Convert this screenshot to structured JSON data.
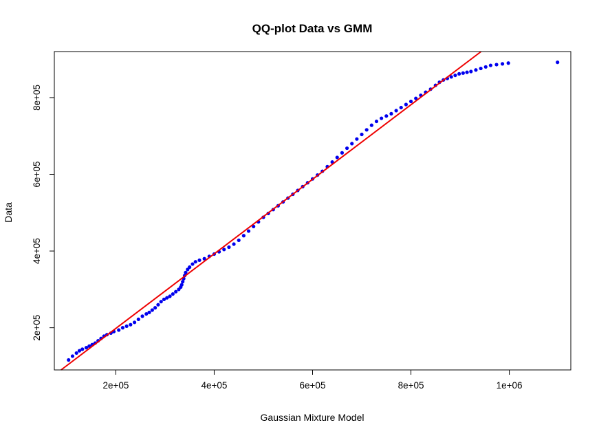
{
  "colors": {
    "points": "#0000ee",
    "line": "#ee0000",
    "frame": "#000000",
    "background": "#ffffff"
  },
  "chart_data": {
    "type": "scatter",
    "title": "QQ-plot Data vs GMM",
    "xlabel": "Gaussian Mixture Model",
    "ylabel": "Data",
    "xlim": [
      75000,
      1125000
    ],
    "ylim": [
      90000,
      920000
    ],
    "xticks": [
      200000,
      400000,
      600000,
      800000,
      1000000
    ],
    "xtick_labels": [
      "2e+05",
      "4e+05",
      "6e+05",
      "8e+05",
      "1e+06"
    ],
    "yticks": [
      200000,
      400000,
      600000,
      800000
    ],
    "ytick_labels": [
      "2e+05",
      "4e+05",
      "6e+05",
      "8e+05"
    ],
    "grid": false,
    "reference_line": {
      "slope": 0.972,
      "intercept": 3800,
      "color": "red"
    },
    "series": [
      {
        "points": [
          [
            104000,
            116000
          ],
          [
            112000,
            126000
          ],
          [
            120000,
            134000
          ],
          [
            126000,
            140000
          ],
          [
            132000,
            144000
          ],
          [
            140000,
            148000
          ],
          [
            146000,
            152000
          ],
          [
            152000,
            156000
          ],
          [
            158000,
            160000
          ],
          [
            164000,
            166000
          ],
          [
            170000,
            172000
          ],
          [
            176000,
            178000
          ],
          [
            182000,
            182000
          ],
          [
            190000,
            186000
          ],
          [
            196000,
            190000
          ],
          [
            206000,
            194000
          ],
          [
            214000,
            200000
          ],
          [
            222000,
            204000
          ],
          [
            230000,
            208000
          ],
          [
            238000,
            214000
          ],
          [
            246000,
            222000
          ],
          [
            254000,
            230000
          ],
          [
            262000,
            236000
          ],
          [
            268000,
            240000
          ],
          [
            274000,
            246000
          ],
          [
            280000,
            252000
          ],
          [
            286000,
            260000
          ],
          [
            292000,
            268000
          ],
          [
            298000,
            274000
          ],
          [
            304000,
            278000
          ],
          [
            310000,
            282000
          ],
          [
            316000,
            288000
          ],
          [
            322000,
            294000
          ],
          [
            328000,
            300000
          ],
          [
            332000,
            306000
          ],
          [
            334000,
            312000
          ],
          [
            336000,
            320000
          ],
          [
            338000,
            328000
          ],
          [
            340000,
            336000
          ],
          [
            342000,
            344000
          ],
          [
            346000,
            352000
          ],
          [
            350000,
            358000
          ],
          [
            356000,
            366000
          ],
          [
            362000,
            372000
          ],
          [
            370000,
            376000
          ],
          [
            380000,
            380000
          ],
          [
            390000,
            386000
          ],
          [
            400000,
            392000
          ],
          [
            410000,
            398000
          ],
          [
            420000,
            404000
          ],
          [
            430000,
            410000
          ],
          [
            440000,
            418000
          ],
          [
            450000,
            428000
          ],
          [
            460000,
            440000
          ],
          [
            470000,
            452000
          ],
          [
            480000,
            464000
          ],
          [
            490000,
            476000
          ],
          [
            500000,
            488000
          ],
          [
            510000,
            498000
          ],
          [
            520000,
            508000
          ],
          [
            530000,
            518000
          ],
          [
            540000,
            528000
          ],
          [
            550000,
            538000
          ],
          [
            560000,
            548000
          ],
          [
            570000,
            558000
          ],
          [
            580000,
            568000
          ],
          [
            590000,
            578000
          ],
          [
            600000,
            588000
          ],
          [
            610000,
            598000
          ],
          [
            620000,
            608000
          ],
          [
            630000,
            620000
          ],
          [
            640000,
            632000
          ],
          [
            650000,
            644000
          ],
          [
            660000,
            656000
          ],
          [
            670000,
            668000
          ],
          [
            680000,
            680000
          ],
          [
            690000,
            692000
          ],
          [
            700000,
            704000
          ],
          [
            710000,
            716000
          ],
          [
            720000,
            728000
          ],
          [
            730000,
            738000
          ],
          [
            740000,
            746000
          ],
          [
            750000,
            752000
          ],
          [
            760000,
            758000
          ],
          [
            770000,
            766000
          ],
          [
            780000,
            774000
          ],
          [
            790000,
            782000
          ],
          [
            800000,
            790000
          ],
          [
            810000,
            798000
          ],
          [
            820000,
            806000
          ],
          [
            830000,
            814000
          ],
          [
            840000,
            822000
          ],
          [
            850000,
            832000
          ],
          [
            858000,
            840000
          ],
          [
            866000,
            846000
          ],
          [
            874000,
            850000
          ],
          [
            882000,
            854000
          ],
          [
            890000,
            858000
          ],
          [
            898000,
            862000
          ],
          [
            906000,
            864000
          ],
          [
            914000,
            866000
          ],
          [
            922000,
            868000
          ],
          [
            932000,
            872000
          ],
          [
            942000,
            876000
          ],
          [
            952000,
            880000
          ],
          [
            962000,
            884000
          ],
          [
            974000,
            886000
          ],
          [
            986000,
            888000
          ],
          [
            998000,
            890000
          ],
          [
            1098000,
            892000
          ]
        ]
      }
    ]
  }
}
